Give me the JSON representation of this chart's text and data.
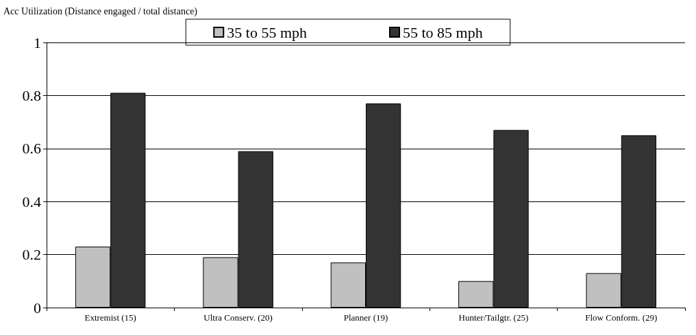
{
  "chart_data": {
    "type": "bar",
    "title": "Acc Utilization (Distance engaged / total distance)",
    "categories": [
      "Extremist (15)",
      "Ultra Conserv. (20)",
      "Planner (19)",
      "Hunter/Tailgtr. (25)",
      "Flow Conform. (29)"
    ],
    "series": [
      {
        "name": "35 to 55 mph",
        "color": "#c0c0c0",
        "values": [
          0.23,
          0.19,
          0.17,
          0.1,
          0.13
        ]
      },
      {
        "name": "55 to 85 mph",
        "color": "#333333",
        "values": [
          0.81,
          0.59,
          0.77,
          0.67,
          0.65
        ]
      }
    ],
    "ylim": [
      0,
      1
    ],
    "yticks": [
      0,
      0.2,
      0.4,
      0.6,
      0.8,
      1
    ],
    "grid": "y",
    "legend": "top"
  }
}
